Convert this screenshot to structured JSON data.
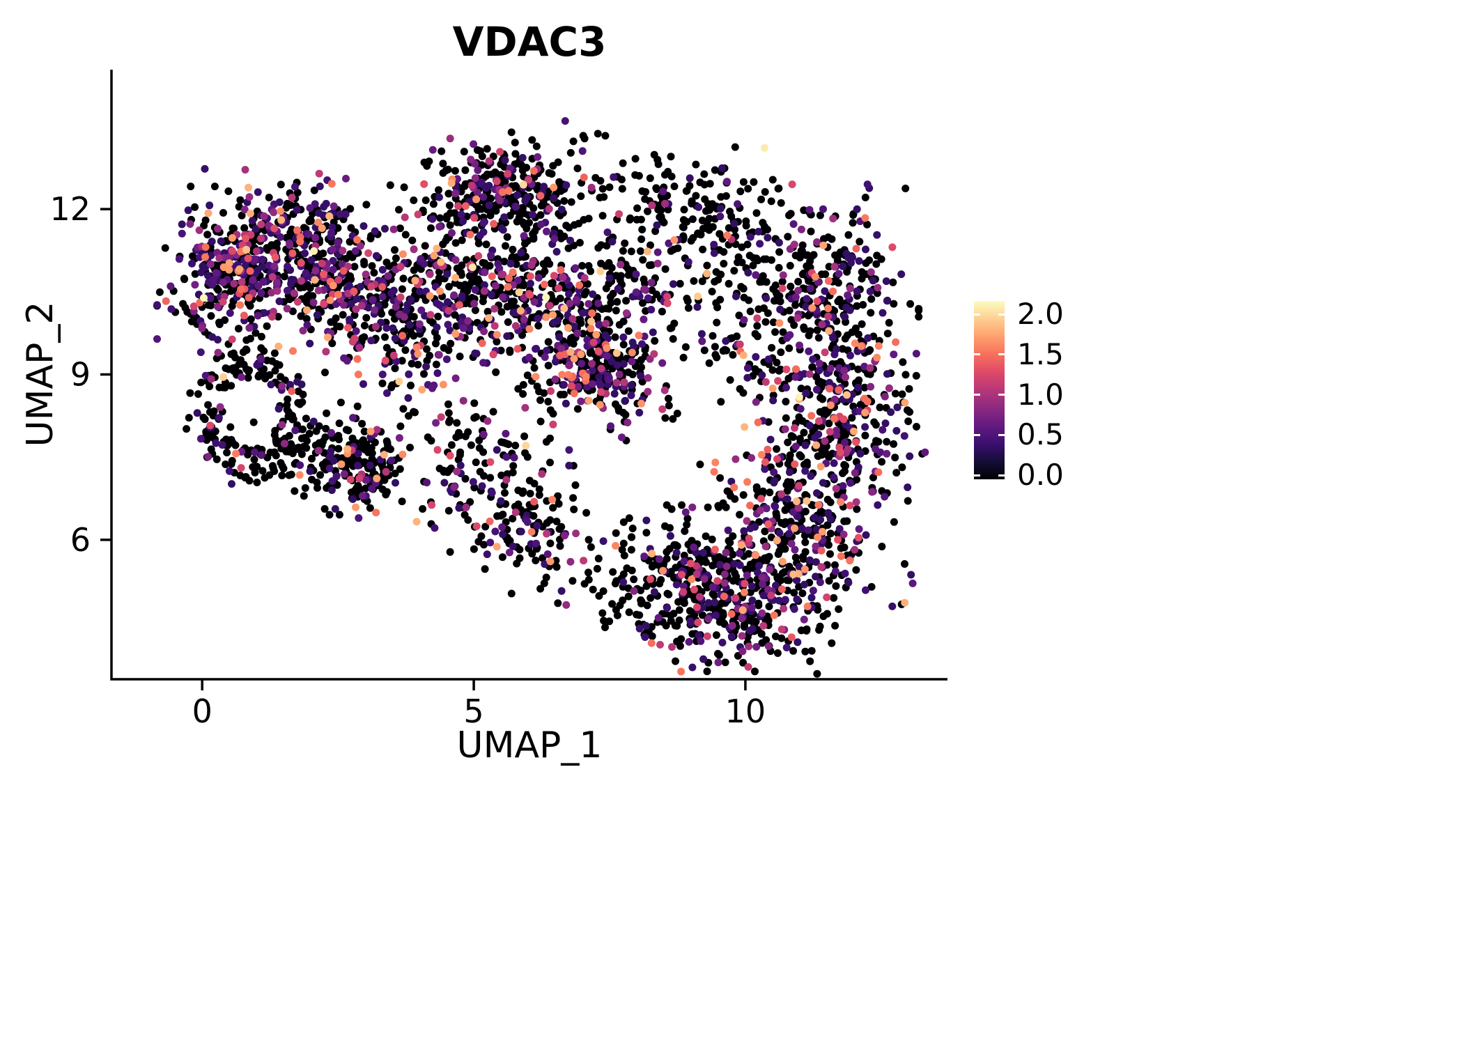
{
  "chart_data": {
    "type": "scatter",
    "title": "VDAC3",
    "xlabel": "UMAP_1",
    "ylabel": "UMAP_2",
    "x_axis": {
      "min": -1.67,
      "max": 13.72,
      "ticks": [
        0,
        5,
        10
      ]
    },
    "y_axis": {
      "min": 3.47,
      "max": 14.53,
      "ticks": [
        6,
        9,
        12
      ]
    },
    "colorbar": {
      "min": 0,
      "max": 2.0,
      "ticks": [
        "2.0",
        "1.5",
        "1.0",
        "0.5",
        "0.0"
      ],
      "position": "right"
    },
    "colormap": {
      "name": "magma",
      "stops": [
        {
          "t": 0.0,
          "color": "#000004"
        },
        {
          "t": 0.1,
          "color": "#140e36"
        },
        {
          "t": 0.2,
          "color": "#3b0f70"
        },
        {
          "t": 0.3,
          "color": "#641a80"
        },
        {
          "t": 0.4,
          "color": "#8c2981"
        },
        {
          "t": 0.5,
          "color": "#b73779"
        },
        {
          "t": 0.6,
          "color": "#de4968"
        },
        {
          "t": 0.7,
          "color": "#f7705c"
        },
        {
          "t": 0.8,
          "color": "#fe9f6d"
        },
        {
          "t": 0.9,
          "color": "#fecf92"
        },
        {
          "t": 1.0,
          "color": "#fcfdbf"
        }
      ]
    },
    "style": {
      "point_radius": 5.5,
      "background": "#ffffff",
      "axis_color": "#000000",
      "text_color": "#000000",
      "grid": false
    },
    "generation": {
      "seed": 1337,
      "expression": {
        "base": 0.35,
        "range": 1.35,
        "power": 3,
        "high_prob": 0.03,
        "high_base": 1.3,
        "high_range": 0.7,
        "max": 2.0
      }
    },
    "clusters": [
      {
        "center": [
          0.6,
          10.8
        ],
        "sd": [
          0.55,
          0.62
        ],
        "n": 320,
        "p0": 0.45
      },
      {
        "center": [
          1.8,
          11.3
        ],
        "sd": [
          0.7,
          0.55
        ],
        "n": 300,
        "p0": 0.5
      },
      {
        "center": [
          2.8,
          10.3
        ],
        "sd": [
          0.6,
          0.5
        ],
        "n": 180,
        "p0": 0.58
      },
      {
        "center": [
          0.9,
          8.3
        ],
        "sd": [
          0.6,
          0.68
        ],
        "n": 190,
        "p0": 0.84,
        "ring": 0.55
      },
      {
        "center": [
          2.0,
          7.6
        ],
        "sd": [
          0.45,
          0.4
        ],
        "n": 90,
        "p0": 0.8
      },
      {
        "center": [
          2.95,
          7.3
        ],
        "sd": [
          0.33,
          0.35
        ],
        "n": 140,
        "p0": 0.75
      },
      {
        "center": [
          5.6,
          12.3
        ],
        "sd": [
          0.75,
          0.5
        ],
        "n": 330,
        "p0": 0.68
      },
      {
        "center": [
          4.6,
          10.6
        ],
        "sd": [
          0.7,
          0.6
        ],
        "n": 230,
        "p0": 0.64
      },
      {
        "center": [
          6.2,
          10.3
        ],
        "sd": [
          0.8,
          0.6
        ],
        "n": 260,
        "p0": 0.64
      },
      {
        "center": [
          7.3,
          9.1
        ],
        "sd": [
          0.6,
          0.5
        ],
        "n": 280,
        "p0": 0.55
      },
      {
        "center": [
          8.8,
          11.9
        ],
        "sd": [
          0.9,
          0.55
        ],
        "n": 190,
        "p0": 0.8
      },
      {
        "center": [
          7.9,
          10.3
        ],
        "sd": [
          0.6,
          0.6
        ],
        "n": 80,
        "p0": 0.8
      },
      {
        "center": [
          9.7,
          10.7
        ],
        "sd": [
          0.5,
          0.8
        ],
        "n": 70,
        "p0": 0.8
      },
      {
        "center": [
          4.9,
          7.3
        ],
        "sd": [
          0.6,
          0.6
        ],
        "n": 120,
        "p0": 0.7
      },
      {
        "center": [
          6.2,
          6.2
        ],
        "sd": [
          0.6,
          0.55
        ],
        "n": 130,
        "p0": 0.68
      },
      {
        "center": [
          8.6,
          5.2
        ],
        "sd": [
          0.7,
          0.55
        ],
        "n": 200,
        "p0": 0.72
      },
      {
        "center": [
          9.9,
          4.9
        ],
        "sd": [
          0.75,
          0.65
        ],
        "n": 330,
        "p0": 0.66
      },
      {
        "center": [
          11.0,
          6.3
        ],
        "sd": [
          0.8,
          0.75
        ],
        "n": 330,
        "p0": 0.62
      },
      {
        "center": [
          11.7,
          8.3
        ],
        "sd": [
          0.65,
          0.85
        ],
        "n": 300,
        "p0": 0.62
      },
      {
        "center": [
          11.5,
          10.5
        ],
        "sd": [
          0.65,
          0.75
        ],
        "n": 260,
        "p0": 0.7
      },
      {
        "center": [
          10.4,
          9.3
        ],
        "sd": [
          0.45,
          0.7
        ],
        "n": 60,
        "p0": 0.75
      },
      {
        "center": [
          3.8,
          9.3
        ],
        "sd": [
          0.6,
          0.7
        ],
        "n": 90,
        "p0": 0.6
      }
    ]
  }
}
